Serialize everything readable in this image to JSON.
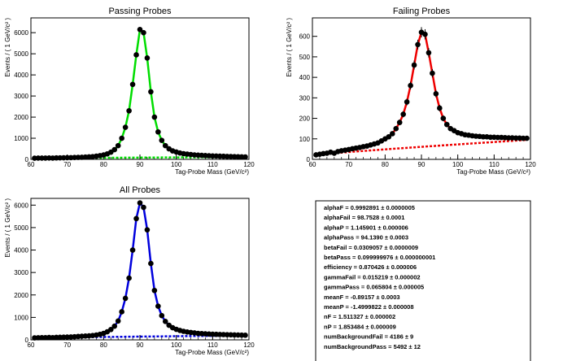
{
  "chart_data": [
    {
      "type": "scatter",
      "title": "Passing Probes",
      "xlabel": "Tag-Probe Mass (GeV/c²)",
      "ylabel": "Events / ( 1 GeV/c² )",
      "xlim": [
        60,
        120
      ],
      "ylim": [
        0,
        6700
      ],
      "xticks": [
        60,
        70,
        80,
        90,
        100,
        110,
        120
      ],
      "yticks": [
        0,
        1000,
        2000,
        3000,
        4000,
        5000,
        6000
      ],
      "x": [
        61,
        62,
        63,
        64,
        65,
        66,
        67,
        68,
        69,
        70,
        71,
        72,
        73,
        74,
        75,
        76,
        77,
        78,
        79,
        80,
        81,
        82,
        83,
        84,
        85,
        86,
        87,
        88,
        89,
        90,
        91,
        92,
        93,
        94,
        95,
        96,
        97,
        98,
        99,
        100,
        101,
        102,
        103,
        104,
        105,
        106,
        107,
        108,
        109,
        110,
        111,
        112,
        113,
        114,
        115,
        116,
        117,
        118,
        119
      ],
      "y": [
        55,
        60,
        60,
        62,
        65,
        62,
        68,
        72,
        75,
        78,
        82,
        88,
        95,
        100,
        110,
        120,
        130,
        150,
        175,
        210,
        260,
        340,
        460,
        650,
        1000,
        1520,
        2300,
        3550,
        4950,
        6150,
        6000,
        4800,
        3200,
        2000,
        1300,
        900,
        650,
        500,
        400,
        350,
        300,
        270,
        250,
        230,
        210,
        200,
        190,
        180,
        170,
        160,
        155,
        150,
        145,
        140,
        135,
        130,
        125,
        120,
        115
      ],
      "series_colors": {
        "fit": "#00dd00",
        "background": "#00dd00",
        "points": "#000000"
      }
    },
    {
      "type": "scatter",
      "title": "Failing Probes",
      "xlabel": "Tag-Probe Mass (GeV/c²)",
      "ylabel": "Events / ( 1 GeV/c² )",
      "xlim": [
        60,
        120
      ],
      "ylim": [
        0,
        690
      ],
      "xticks": [
        60,
        70,
        80,
        90,
        100,
        110,
        120
      ],
      "yticks": [
        0,
        100,
        200,
        300,
        400,
        500,
        600
      ],
      "x": [
        61,
        62,
        63,
        64,
        65,
        66,
        67,
        68,
        69,
        70,
        71,
        72,
        73,
        74,
        75,
        76,
        77,
        78,
        79,
        80,
        81,
        82,
        83,
        84,
        85,
        86,
        87,
        88,
        89,
        90,
        91,
        92,
        93,
        94,
        95,
        96,
        97,
        98,
        99,
        100,
        101,
        102,
        103,
        104,
        105,
        106,
        107,
        108,
        109,
        110,
        111,
        112,
        113,
        114,
        115,
        116,
        117,
        118,
        119
      ],
      "y": [
        22,
        25,
        28,
        30,
        35,
        30,
        38,
        42,
        45,
        48,
        52,
        55,
        58,
        62,
        65,
        70,
        75,
        80,
        90,
        100,
        110,
        125,
        150,
        180,
        220,
        280,
        360,
        460,
        560,
        620,
        610,
        520,
        420,
        320,
        250,
        200,
        170,
        150,
        140,
        130,
        125,
        120,
        118,
        115,
        113,
        112,
        110,
        110,
        108,
        108,
        107,
        107,
        106,
        105,
        105,
        104,
        104,
        103,
        103
      ],
      "series_colors": {
        "fit": "#ee0000",
        "background": "#ee0000",
        "points": "#000000"
      }
    },
    {
      "type": "scatter",
      "title": "All Probes",
      "xlabel": "Tag-Probe Mass (GeV/c²)",
      "ylabel": "Events / ( 1 GeV/c² )",
      "xlim": [
        60,
        120
      ],
      "ylim": [
        0,
        6300
      ],
      "xticks": [
        60,
        70,
        80,
        90,
        100,
        110,
        120
      ],
      "yticks": [
        0,
        1000,
        2000,
        3000,
        4000,
        5000,
        6000
      ],
      "x": [
        61,
        62,
        63,
        64,
        65,
        66,
        67,
        68,
        69,
        70,
        71,
        72,
        73,
        74,
        75,
        76,
        77,
        78,
        79,
        80,
        81,
        82,
        83,
        84,
        85,
        86,
        87,
        88,
        89,
        90,
        91,
        92,
        93,
        94,
        95,
        96,
        97,
        98,
        99,
        100,
        101,
        102,
        103,
        104,
        105,
        106,
        107,
        108,
        109,
        110,
        111,
        112,
        113,
        114,
        115,
        116,
        117,
        118,
        119
      ],
      "y": [
        90,
        95,
        100,
        100,
        105,
        100,
        110,
        115,
        120,
        125,
        130,
        140,
        150,
        160,
        170,
        180,
        195,
        215,
        245,
        290,
        360,
        460,
        610,
        840,
        1250,
        1850,
        2750,
        4000,
        5400,
        6100,
        5900,
        4900,
        3400,
        2200,
        1500,
        1080,
        820,
        650,
        540,
        470,
        420,
        380,
        350,
        330,
        310,
        290,
        280,
        270,
        260,
        250,
        245,
        240,
        235,
        230,
        225,
        220,
        215,
        210,
        205
      ],
      "series_colors": {
        "fit": "#0000dd",
        "background": "#0000dd",
        "points": "#000000"
      }
    }
  ],
  "params": [
    "alphaF = 0.9992891 ± 0.0000005",
    "alphaFail = 98.7528 ± 0.0001",
    "alphaP = 1.145901 ± 0.000006",
    "alphaPass = 94.1390 ± 0.0003",
    "betaFail = 0.0309057 ± 0.0000009",
    "betaPass = 0.099999976 ± 0.000000001",
    "efficiency = 0.870426 ± 0.000006",
    "gammaFail = 0.015219 ± 0.000002",
    "gammaPass = 0.065804 ± 0.000005",
    "meanF = -0.89157 ± 0.0003",
    "meanP = -1.4999822 ± 0.000008",
    "nF = 1.511327 ± 0.000002",
    "nP = 1.853484 ± 0.000009",
    "numBackgroundFail = 4186 ± 9",
    "numBackgroundPass = 5492 ± 12"
  ]
}
